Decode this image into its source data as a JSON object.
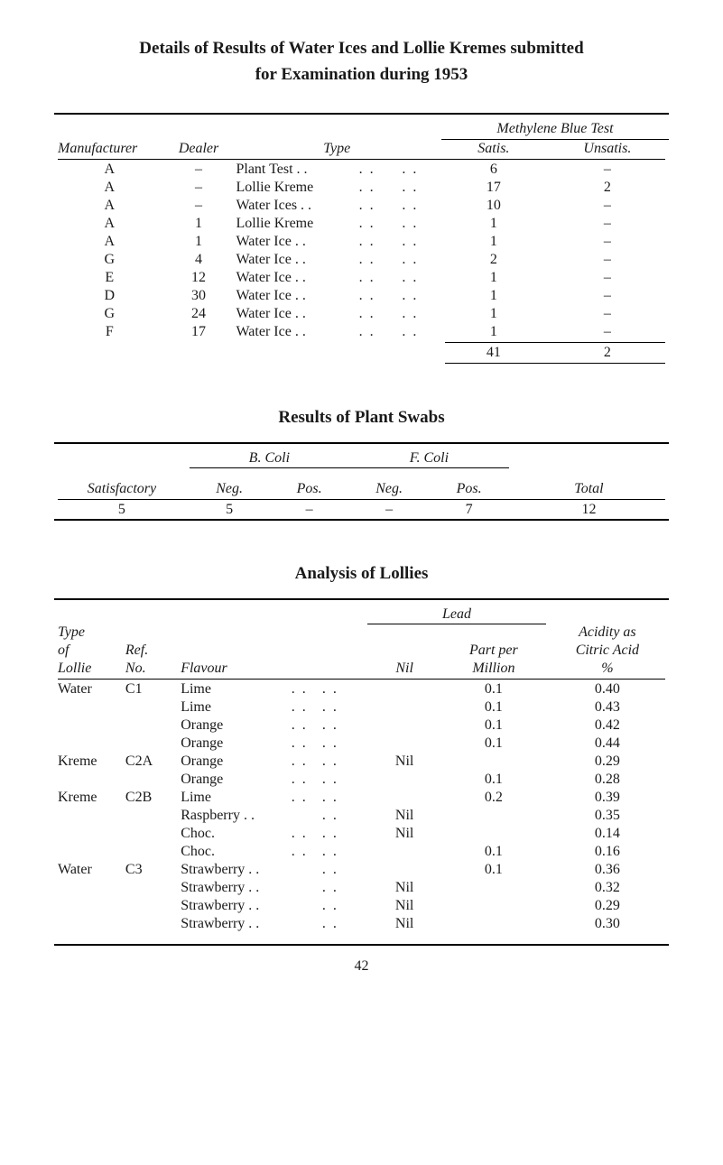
{
  "title_line1": "Details of Results of Water Ices and Lollie Kremes submitted",
  "title_line2": "for Examination during 1953",
  "table1": {
    "mbt_header": "Methylene Blue Test",
    "columns": [
      "Manufacturer",
      "Dealer",
      "Type",
      "Satis.",
      "Unsatis."
    ],
    "rows": [
      {
        "manufacturer": "A",
        "dealer": "–",
        "type": "Plant Test . .",
        "d1": ". .",
        "d2": ". .",
        "satis": "6",
        "unsatis": "–"
      },
      {
        "manufacturer": "A",
        "dealer": "–",
        "type": "Lollie Kreme",
        "d1": ". .",
        "d2": ". .",
        "satis": "17",
        "unsatis": "2"
      },
      {
        "manufacturer": "A",
        "dealer": "–",
        "type": "Water Ices . .",
        "d1": ". .",
        "d2": ". .",
        "satis": "10",
        "unsatis": "–"
      },
      {
        "manufacturer": "A",
        "dealer": "1",
        "type": "Lollie Kreme",
        "d1": ". .",
        "d2": ". .",
        "satis": "1",
        "unsatis": "–"
      },
      {
        "manufacturer": "A",
        "dealer": "1",
        "type": "Water Ice . .",
        "d1": ". .",
        "d2": ". .",
        "satis": "1",
        "unsatis": "–"
      },
      {
        "manufacturer": "G",
        "dealer": "4",
        "type": "Water Ice . .",
        "d1": ". .",
        "d2": ". .",
        "satis": "2",
        "unsatis": "–"
      },
      {
        "manufacturer": "E",
        "dealer": "12",
        "type": "Water Ice . .",
        "d1": ". .",
        "d2": ". .",
        "satis": "1",
        "unsatis": "–"
      },
      {
        "manufacturer": "D",
        "dealer": "30",
        "type": "Water Ice . .",
        "d1": ". .",
        "d2": ". .",
        "satis": "1",
        "unsatis": "–"
      },
      {
        "manufacturer": "G",
        "dealer": "24",
        "type": "Water Ice . .",
        "d1": ". .",
        "d2": ". .",
        "satis": "1",
        "unsatis": "–"
      },
      {
        "manufacturer": "F",
        "dealer": "17",
        "type": "Water Ice . .",
        "d1": ". .",
        "d2": ". .",
        "satis": "1",
        "unsatis": "–"
      }
    ],
    "totals": {
      "satis": "41",
      "unsatis": "2"
    }
  },
  "section2_title": "Results of Plant Swabs",
  "table2": {
    "bcoli": "B. Coli",
    "fcoli": "F. Coli",
    "satisfactory": "Satisfactory",
    "neg": "Neg.",
    "pos": "Pos.",
    "total": "Total",
    "row": {
      "sat": "5",
      "bneg": "5",
      "bpos": "–",
      "fneg": "–",
      "fpos": "7",
      "total": "12"
    }
  },
  "section3_title": "Analysis of Lollies",
  "table3": {
    "lead": "Lead",
    "type_of_lollie_l1": "Type",
    "type_of_lollie_l2": "of",
    "type_of_lollie_l3": "Lollie",
    "ref_l1": "Ref.",
    "ref_l2": "No.",
    "flavour": "Flavour",
    "nil": "Nil",
    "partper_l1": "Part per",
    "partper_l2": "Million",
    "acidity_l1": "Acidity as",
    "acidity_l2": "Citric Acid",
    "acidity_l3": "%",
    "rows": [
      {
        "type": "Water",
        "ref": "C1",
        "flavour": "Lime",
        "d1": ". .",
        "d2": ". .",
        "nil": "",
        "ppm": "0.1",
        "acid": "0.40"
      },
      {
        "type": "",
        "ref": "",
        "flavour": "Lime",
        "d1": ". .",
        "d2": ". .",
        "nil": "",
        "ppm": "0.1",
        "acid": "0.43"
      },
      {
        "type": "",
        "ref": "",
        "flavour": "Orange",
        "d1": ". .",
        "d2": ". .",
        "nil": "",
        "ppm": "0.1",
        "acid": "0.42"
      },
      {
        "type": "",
        "ref": "",
        "flavour": "Orange",
        "d1": ". .",
        "d2": ". .",
        "nil": "",
        "ppm": "0.1",
        "acid": "0.44"
      },
      {
        "type": "Kreme",
        "ref": "C2A",
        "flavour": "Orange",
        "d1": ". .",
        "d2": ". .",
        "nil": "Nil",
        "ppm": "",
        "acid": "0.29"
      },
      {
        "type": "",
        "ref": "",
        "flavour": "Orange",
        "d1": ". .",
        "d2": ". .",
        "nil": "",
        "ppm": "0.1",
        "acid": "0.28"
      },
      {
        "type": "Kreme",
        "ref": "C2B",
        "flavour": "Lime",
        "d1": ". .",
        "d2": ". .",
        "nil": "",
        "ppm": "0.2",
        "acid": "0.39"
      },
      {
        "type": "",
        "ref": "",
        "flavour": "Raspberry . .",
        "d1": "",
        "d2": ". .",
        "nil": "Nil",
        "ppm": "",
        "acid": "0.35"
      },
      {
        "type": "",
        "ref": "",
        "flavour": "Choc.",
        "d1": ". .",
        "d2": ". .",
        "nil": "Nil",
        "ppm": "",
        "acid": "0.14"
      },
      {
        "type": "",
        "ref": "",
        "flavour": "Choc.",
        "d1": ". .",
        "d2": ". .",
        "nil": "",
        "ppm": "0.1",
        "acid": "0.16"
      },
      {
        "type": "Water",
        "ref": "C3",
        "flavour": "Strawberry . .",
        "d1": "",
        "d2": ". .",
        "nil": "",
        "ppm": "0.1",
        "acid": "0.36"
      },
      {
        "type": "",
        "ref": "",
        "flavour": "Strawberry . .",
        "d1": "",
        "d2": ". .",
        "nil": "Nil",
        "ppm": "",
        "acid": "0.32"
      },
      {
        "type": "",
        "ref": "",
        "flavour": "Strawberry . .",
        "d1": "",
        "d2": ". .",
        "nil": "Nil",
        "ppm": "",
        "acid": "0.29"
      },
      {
        "type": "",
        "ref": "",
        "flavour": "Strawberry . .",
        "d1": "",
        "d2": ". .",
        "nil": "Nil",
        "ppm": "",
        "acid": "0.30"
      }
    ]
  },
  "page_number": "42"
}
